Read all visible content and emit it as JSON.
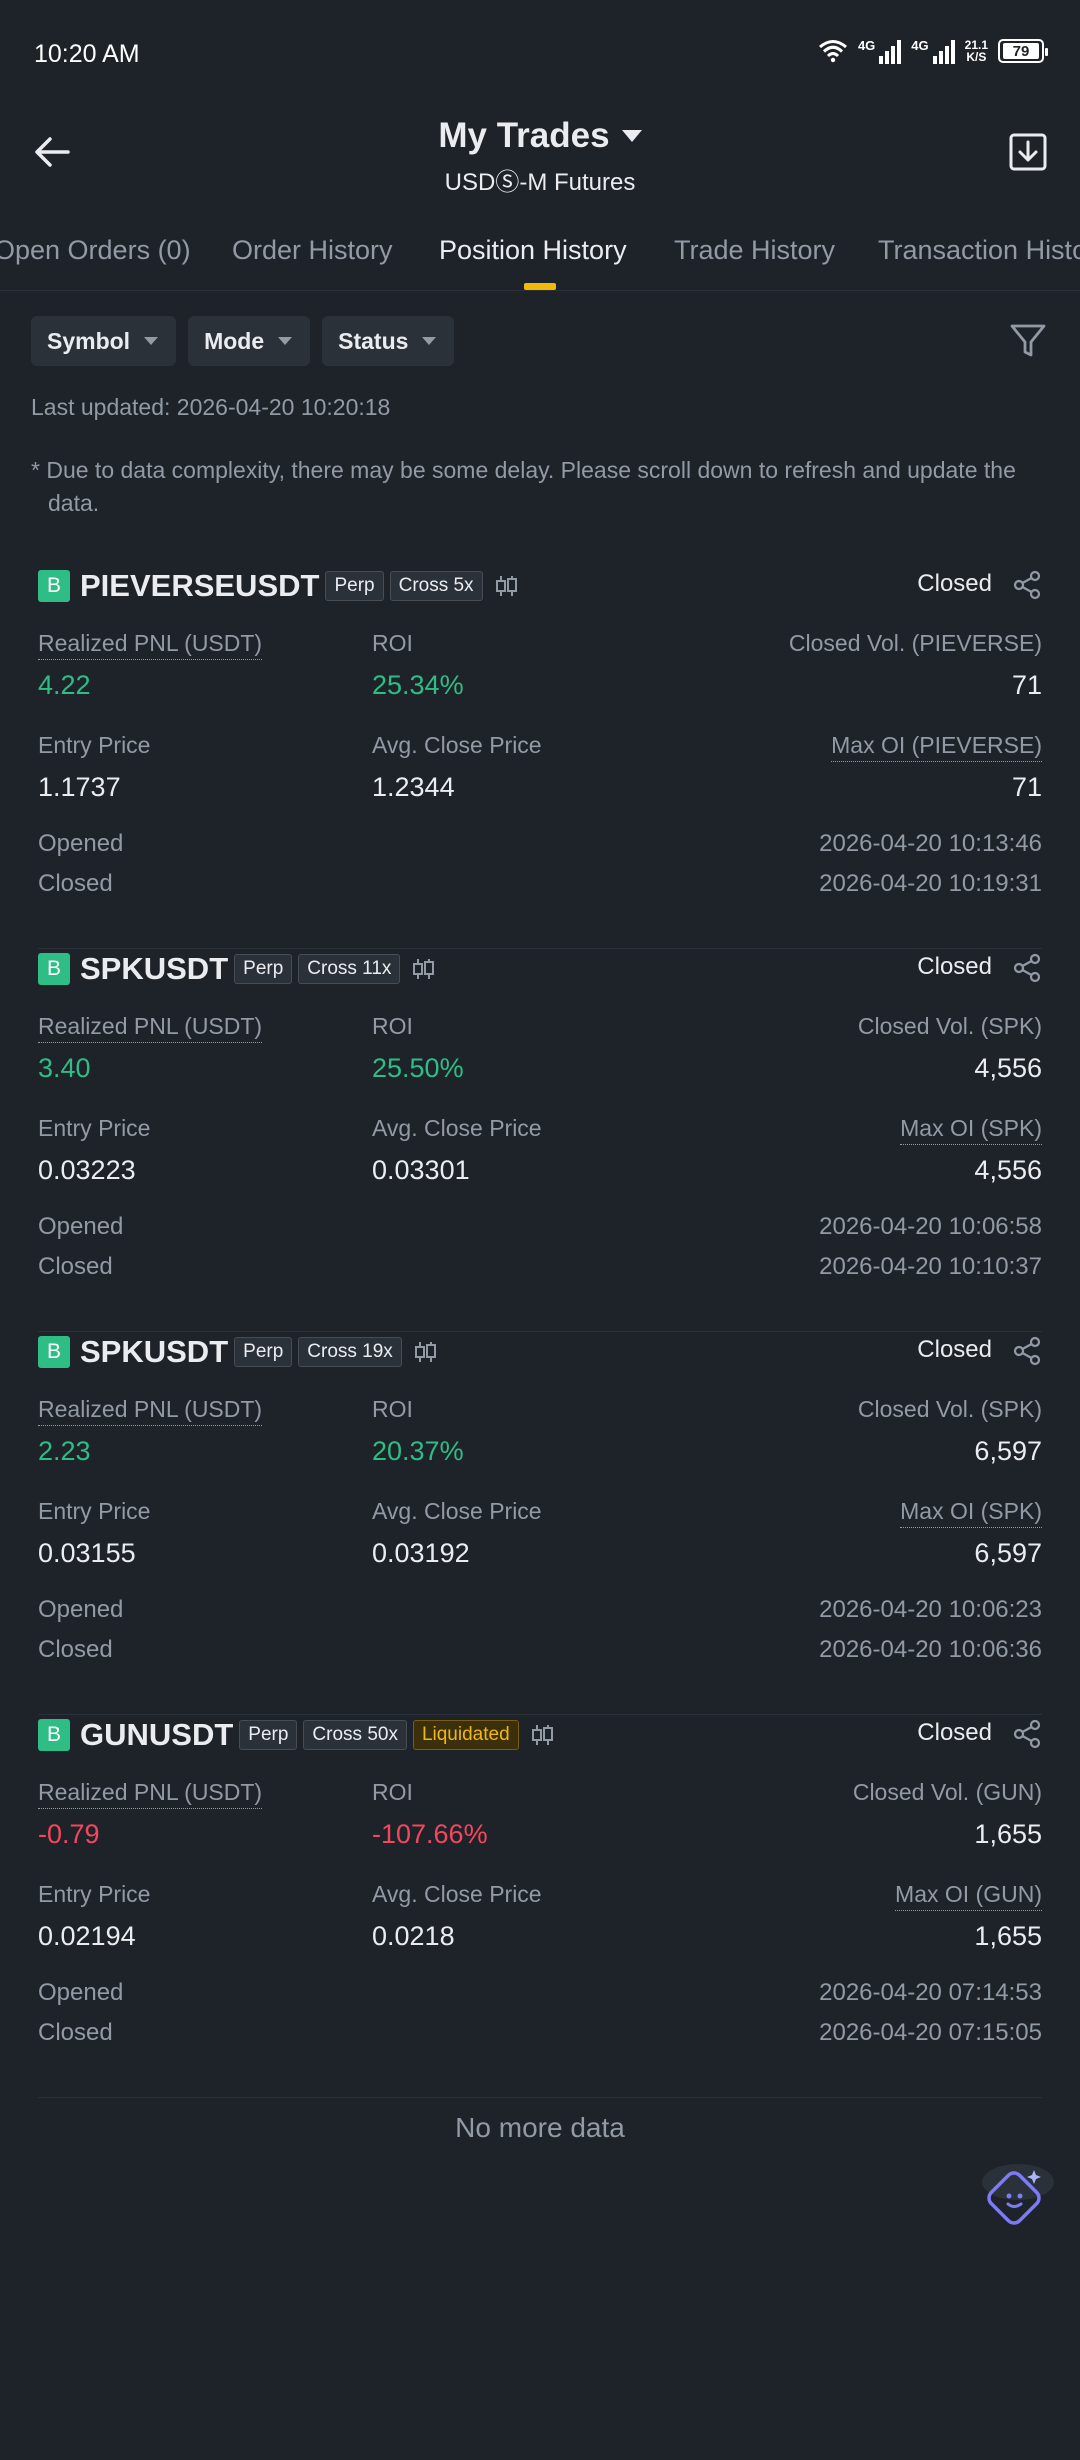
{
  "status_bar": {
    "time": "10:20 AM",
    "network1": "4G",
    "network2": "4G",
    "speed_value": "21.1",
    "speed_unit": "K/S",
    "battery": "79"
  },
  "header": {
    "title": "My Trades",
    "subtitle": "USDⓈ-M Futures"
  },
  "tabs": [
    "Open Orders (0)",
    "Order History",
    "Position History",
    "Trade History",
    "Transaction History"
  ],
  "active_tab": "Position History",
  "filters": {
    "symbol": "Symbol",
    "mode": "Mode",
    "status": "Status"
  },
  "last_updated": "Last updated: 2026-04-20 10:20:18",
  "notice": "* Due to data complexity, there may be some delay. Please scroll down to refresh and update the data.",
  "labels": {
    "side": "B",
    "perp": "Perp",
    "closed": "Closed",
    "realized_pnl": "Realized PNL (USDT)",
    "roi": "ROI",
    "entry_price": "Entry Price",
    "avg_close_price": "Avg. Close Price",
    "opened": "Opened",
    "closed_time": "Closed",
    "liquidated": "Liquidated"
  },
  "positions": [
    {
      "symbol": "PIEVERSEUSDT",
      "margin": "Cross 5x",
      "realized_pnl": "4.22",
      "roi": "25.34%",
      "closed_vol_label": "Closed Vol. (PIEVERSE)",
      "closed_vol": "71",
      "entry_price": "1.1737",
      "avg_close_price": "1.2344",
      "max_oi_label": "Max OI (PIEVERSE)",
      "max_oi": "71",
      "opened": "2026-04-20 10:13:46",
      "closed": "2026-04-20 10:19:31"
    },
    {
      "symbol": "SPKUSDT",
      "margin": "Cross 11x",
      "realized_pnl": "3.40",
      "roi": "25.50%",
      "closed_vol_label": "Closed Vol. (SPK)",
      "closed_vol": "4,556",
      "entry_price": "0.03223",
      "avg_close_price": "0.03301",
      "max_oi_label": "Max OI (SPK)",
      "max_oi": "4,556",
      "opened": "2026-04-20 10:06:58",
      "closed": "2026-04-20 10:10:37"
    },
    {
      "symbol": "SPKUSDT",
      "margin": "Cross 19x",
      "realized_pnl": "2.23",
      "roi": "20.37%",
      "closed_vol_label": "Closed Vol. (SPK)",
      "closed_vol": "6,597",
      "entry_price": "0.03155",
      "avg_close_price": "0.03192",
      "max_oi_label": "Max OI (SPK)",
      "max_oi": "6,597",
      "opened": "2026-04-20 10:06:23",
      "closed": "2026-04-20 10:06:36"
    },
    {
      "symbol": "GUNUSDT",
      "margin": "Cross 50x",
      "realized_pnl": "-0.79",
      "roi": "-107.66%",
      "closed_vol_label": "Closed Vol. (GUN)",
      "closed_vol": "1,655",
      "entry_price": "0.02194",
      "avg_close_price": "0.0218",
      "max_oi_label": "Max OI (GUN)",
      "max_oi": "1,655",
      "opened": "2026-04-20 07:14:53",
      "closed": "2026-04-20 07:15:05"
    }
  ],
  "no_more": "No more data",
  "colors": {
    "background": "#1e2329",
    "positive": "#2ebd85",
    "negative": "#f6465d",
    "accent": "#f0b90b",
    "muted": "#929aa5"
  }
}
